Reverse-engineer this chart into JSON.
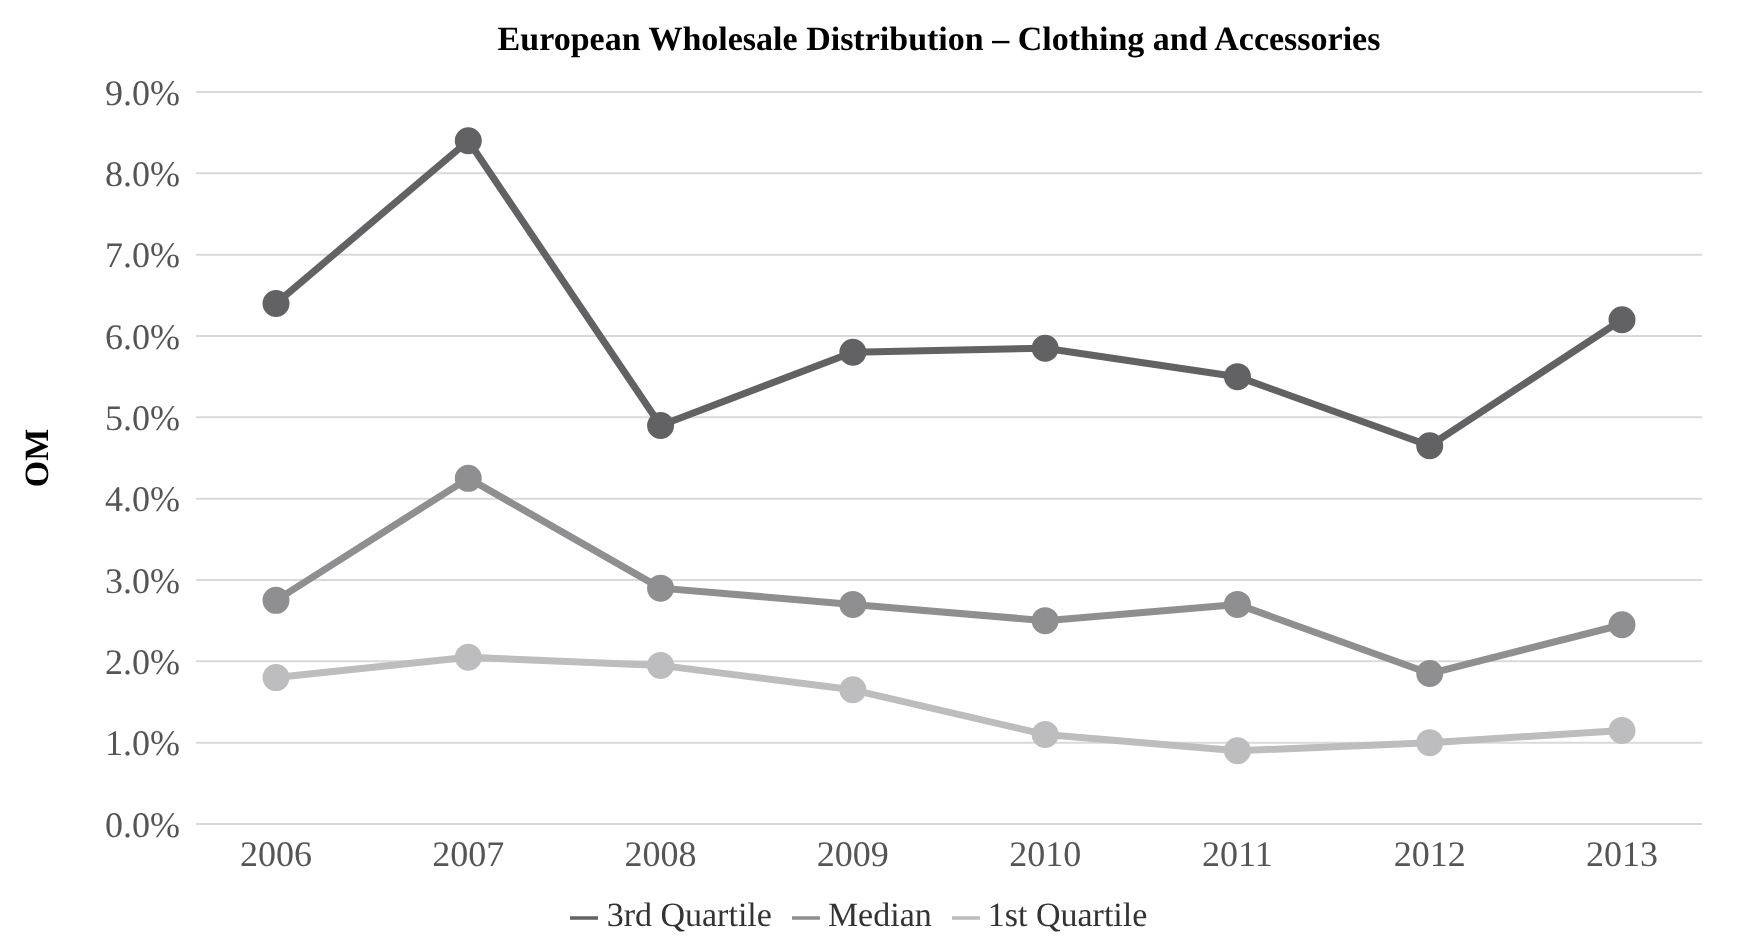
{
  "chart_data": {
    "type": "line",
    "title": "European Wholesale Distribution – Clothing and Accessories",
    "ylabel": "OM",
    "categories": [
      "2006",
      "2007",
      "2008",
      "2009",
      "2010",
      "2011",
      "2012",
      "2013"
    ],
    "series": [
      {
        "name": "3rd Quartile",
        "color": "#626265",
        "values": [
          6.4,
          8.4,
          4.9,
          5.8,
          5.85,
          5.5,
          4.65,
          6.2
        ]
      },
      {
        "name": "Median",
        "color": "#8f8f92",
        "values": [
          2.75,
          4.25,
          2.9,
          2.7,
          2.5,
          2.7,
          1.85,
          2.45
        ]
      },
      {
        "name": "1st Quartile",
        "color": "#bdbdbf",
        "values": [
          1.8,
          2.05,
          1.95,
          1.65,
          1.1,
          0.9,
          1.0,
          1.15
        ]
      }
    ],
    "ylim": [
      0,
      9
    ],
    "yticks": [
      {
        "value": 0,
        "label": "0.0%"
      },
      {
        "value": 1,
        "label": "1.0%"
      },
      {
        "value": 2,
        "label": "2.0%"
      },
      {
        "value": 3,
        "label": "3.0%"
      },
      {
        "value": 4,
        "label": "4.0%"
      },
      {
        "value": 5,
        "label": "5.0%"
      },
      {
        "value": 6,
        "label": "6.0%"
      },
      {
        "value": 7,
        "label": "7.0%"
      },
      {
        "value": 8,
        "label": "8.0%"
      },
      {
        "value": 9,
        "label": "9.0%"
      }
    ],
    "grid": "y",
    "legend": "bottom",
    "marker": "circle",
    "line_style": "solid"
  }
}
